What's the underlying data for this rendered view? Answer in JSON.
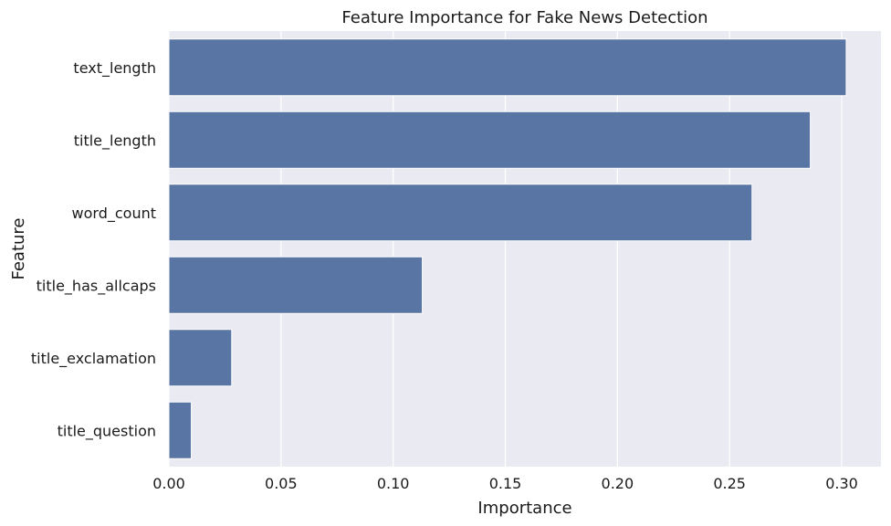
{
  "chart_data": {
    "type": "bar",
    "orientation": "horizontal",
    "title": "Feature Importance for Fake News Detection",
    "xlabel": "Importance",
    "ylabel": "Feature",
    "categories": [
      "text_length",
      "title_length",
      "word_count",
      "title_has_allcaps",
      "title_exclamation",
      "title_question"
    ],
    "values": [
      0.302,
      0.286,
      0.26,
      0.113,
      0.028,
      0.01
    ],
    "xlim": [
      0.0,
      0.3175
    ],
    "xticks": [
      0.0,
      0.05,
      0.1,
      0.15,
      0.2,
      0.25,
      0.3
    ],
    "xtick_labels": [
      "0.00",
      "0.05",
      "0.10",
      "0.15",
      "0.20",
      "0.25",
      "0.30"
    ],
    "grid": true,
    "colors": {
      "bar": "#5975a4",
      "plot_background": "#eaeaf2",
      "grid": "#ffffff"
    }
  }
}
